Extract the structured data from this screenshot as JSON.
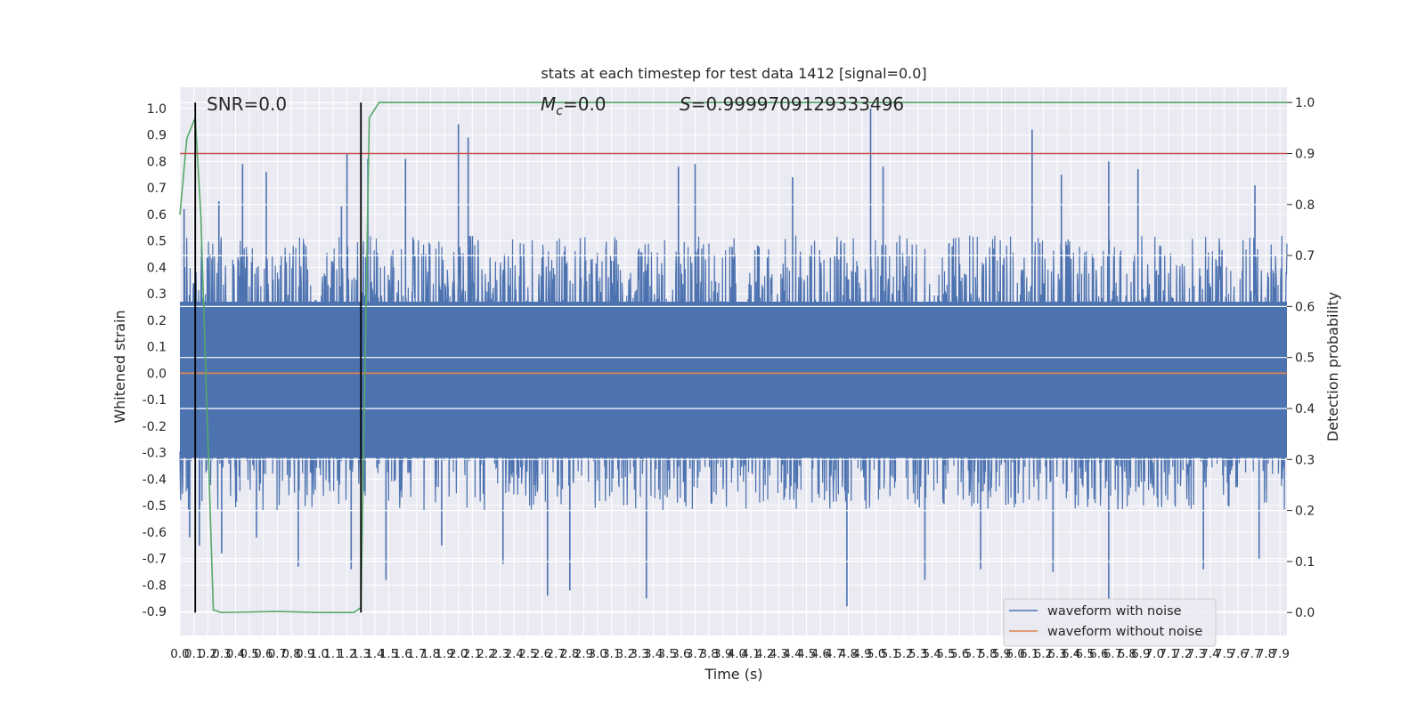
{
  "chart_data": {
    "type": "line",
    "title": "stats at each timestep for test data 1412 [signal=0.0]",
    "xlabel": "Time (s)",
    "ylabel": "Whitened strain",
    "y2label": "Detection probability",
    "xlim": [
      0.0,
      7.95
    ],
    "ylim": [
      -0.99,
      1.08
    ],
    "y2lim": [
      -0.045,
      1.03
    ],
    "grid": true,
    "x_ticks": [
      "0.0",
      "0.1",
      "0.2",
      "0.3",
      "0.4",
      "0.5",
      "0.6",
      "0.7",
      "0.8",
      "0.9",
      "1.0",
      "1.1",
      "1.2",
      "1.3",
      "1.4",
      "1.5",
      "1.6",
      "1.7",
      "1.8",
      "1.9",
      "2.0",
      "2.1",
      "2.2",
      "2.3",
      "2.4",
      "2.5",
      "2.6",
      "2.7",
      "2.8",
      "2.9",
      "3.0",
      "3.1",
      "3.2",
      "3.3",
      "3.4",
      "3.5",
      "3.6",
      "3.7",
      "3.8",
      "3.9",
      "4.0",
      "4.1",
      "4.2",
      "4.3",
      "4.4",
      "4.5",
      "4.6",
      "4.7",
      "4.8",
      "4.9",
      "5.0",
      "5.1",
      "5.2",
      "5.3",
      "5.4",
      "5.5",
      "5.6",
      "5.7",
      "5.8",
      "5.9",
      "6.0",
      "6.1",
      "6.2",
      "6.3",
      "6.4",
      "6.5",
      "6.6",
      "6.7",
      "6.8",
      "6.9",
      "7.0",
      "7.1",
      "7.2",
      "7.3",
      "7.4",
      "7.5",
      "7.6",
      "7.7",
      "7.8",
      "7.9"
    ],
    "y_ticks": [
      "1.0",
      "0.9",
      "0.8",
      "0.7",
      "0.6",
      "0.5",
      "0.4",
      "0.3",
      "0.2",
      "0.1",
      "0.0",
      "-0.1",
      "-0.2",
      "-0.3",
      "-0.4",
      "-0.5",
      "-0.6",
      "-0.7",
      "-0.8",
      "-0.9"
    ],
    "y2_ticks": [
      "1.0",
      "0.9",
      "0.8",
      "0.7",
      "0.6",
      "0.5",
      "0.4",
      "0.3",
      "0.2",
      "0.1",
      "0.0"
    ],
    "annotations": {
      "snr": "SNR=0.0",
      "mc_symbol": "M",
      "mc_sub": "c",
      "mc_value": "=0.0",
      "s_symbol": "S",
      "s_value": "=0.9999709129333496"
    },
    "series": [
      {
        "name": "waveform with noise",
        "color": "#4c72b0",
        "envelope": "dense noise, typical range -0.45 to 0.45",
        "spikes": [
          {
            "x": 0.03,
            "y": 0.62
          },
          {
            "x": 0.07,
            "y": -0.62
          },
          {
            "x": 0.11,
            "y": 0.64
          },
          {
            "x": 0.14,
            "y": -0.65
          },
          {
            "x": 0.28,
            "y": 0.65
          },
          {
            "x": 0.3,
            "y": -0.68
          },
          {
            "x": 0.45,
            "y": 0.79
          },
          {
            "x": 0.55,
            "y": -0.62
          },
          {
            "x": 0.62,
            "y": 0.76
          },
          {
            "x": 0.85,
            "y": -0.73
          },
          {
            "x": 1.16,
            "y": 0.63
          },
          {
            "x": 1.2,
            "y": 0.83
          },
          {
            "x": 1.23,
            "y": -0.74
          },
          {
            "x": 1.3,
            "y": 0.84
          },
          {
            "x": 1.35,
            "y": 0.81
          },
          {
            "x": 1.48,
            "y": -0.78
          },
          {
            "x": 1.62,
            "y": 0.81
          },
          {
            "x": 1.88,
            "y": -0.65
          },
          {
            "x": 2.0,
            "y": 0.94
          },
          {
            "x": 2.07,
            "y": 0.89
          },
          {
            "x": 2.32,
            "y": -0.72
          },
          {
            "x": 2.64,
            "y": -0.84
          },
          {
            "x": 2.8,
            "y": -0.82
          },
          {
            "x": 3.35,
            "y": -0.85
          },
          {
            "x": 3.58,
            "y": 0.78
          },
          {
            "x": 3.7,
            "y": 0.79
          },
          {
            "x": 4.4,
            "y": 0.74
          },
          {
            "x": 4.79,
            "y": -0.88
          },
          {
            "x": 4.96,
            "y": 1.0
          },
          {
            "x": 5.05,
            "y": 0.78
          },
          {
            "x": 5.35,
            "y": -0.78
          },
          {
            "x": 5.75,
            "y": -0.74
          },
          {
            "x": 6.12,
            "y": 0.92
          },
          {
            "x": 6.27,
            "y": -0.75
          },
          {
            "x": 6.33,
            "y": 0.75
          },
          {
            "x": 6.67,
            "y": -0.85
          },
          {
            "x": 6.67,
            "y": 0.8
          },
          {
            "x": 6.88,
            "y": 0.77
          },
          {
            "x": 7.35,
            "y": -0.74
          },
          {
            "x": 7.72,
            "y": 0.71
          },
          {
            "x": 7.75,
            "y": -0.7
          }
        ]
      },
      {
        "name": "waveform without noise",
        "color": "#dd8452",
        "x": [
          0.0,
          7.95
        ],
        "y": [
          0.0,
          0.0
        ]
      },
      {
        "axis": "right",
        "color": "#55a868",
        "x": [
          0.0,
          0.05,
          0.11,
          0.15,
          0.24,
          0.3,
          0.7,
          1.0,
          1.25,
          1.3,
          1.36,
          1.43,
          7.95
        ],
        "y": [
          0.78,
          0.93,
          0.97,
          0.78,
          0.005,
          0.0,
          0.002,
          0.0,
          0.0,
          0.01,
          0.97,
          1.0,
          1.0
        ]
      },
      {
        "axis": "right",
        "color": "#c44e52",
        "x": [
          0.0,
          7.95
        ],
        "y": [
          0.9,
          0.9
        ]
      }
    ],
    "vlines": [
      {
        "x": 0.11,
        "color": "#000000"
      },
      {
        "x": 1.3,
        "color": "#000000"
      }
    ],
    "legend": {
      "placement": "lower-right",
      "entries": [
        {
          "label": "waveform with noise",
          "color": "#4c72b0"
        },
        {
          "label": "waveform without noise",
          "color": "#dd8452"
        }
      ]
    },
    "colors": {
      "plot_bg": "#eaeaf2",
      "grid": "#ffffff"
    }
  }
}
